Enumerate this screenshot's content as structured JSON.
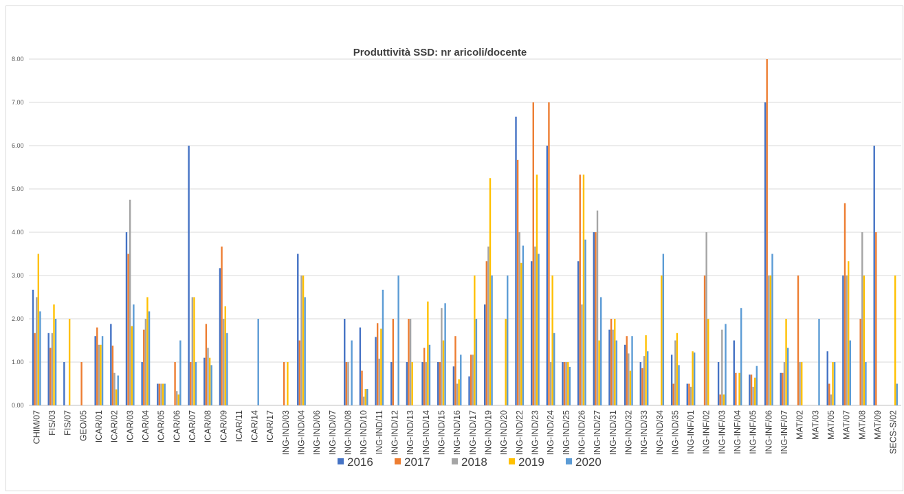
{
  "chart_data": {
    "type": "bar",
    "title": "Produttività SSD: nr aricoli/docente",
    "xlabel": "",
    "ylabel": "",
    "ylim": [
      0,
      8
    ],
    "yticks": [
      "0.00",
      "1.00",
      "2.00",
      "3.00",
      "4.00",
      "5.00",
      "6.00",
      "7.00",
      "8.00"
    ],
    "grid": true,
    "legend_position": "bottom",
    "categories": [
      "CHIM/07",
      "FIS/03",
      "FIS/07",
      "GEO/05",
      "ICAR/01",
      "ICAR/02",
      "ICAR/03",
      "ICAR/04",
      "ICAR/05",
      "ICAR/06",
      "ICAR/07",
      "ICAR/08",
      "ICAR/09",
      "ICAR/11",
      "ICAR/14",
      "ICAR/17",
      "ING-IND/03",
      "ING-IND/04",
      "ING-IND/06",
      "ING-IND/07",
      "ING-IND/08",
      "ING-IND/10",
      "ING-IND/11",
      "ING-IND/12",
      "ING-IND/13",
      "ING-IND/14",
      "ING-IND/15",
      "ING-IND/16",
      "ING-IND/17",
      "ING-IND/19",
      "ING-IND/20",
      "ING-IND/22",
      "ING-IND/23",
      "ING-IND/24",
      "ING-IND/25",
      "ING-IND/26",
      "ING-IND/27",
      "ING-IND/31",
      "ING-IND/32",
      "ING-IND/33",
      "ING-IND/34",
      "ING-IND/35",
      "ING-INF/01",
      "ING-INF/02",
      "ING-INF/03",
      "ING-INF/04",
      "ING-INF/05",
      "ING-INF/06",
      "ING-INF/07",
      "MAT/02",
      "MAT/03",
      "MAT/05",
      "MAT/07",
      "MAT/08",
      "MAT/09",
      "SECS-S/02"
    ],
    "series": [
      {
        "name": "2016",
        "color": "#4472c4",
        "values": [
          2.67,
          1.67,
          1.0,
          0,
          1.6,
          1.88,
          4.0,
          1.0,
          0.5,
          0,
          6.0,
          1.1,
          3.17,
          0,
          0,
          0,
          0,
          3.5,
          0,
          0,
          2.0,
          1.8,
          1.58,
          1.0,
          1.0,
          1.0,
          1.0,
          0.9,
          0.67,
          2.33,
          0,
          6.67,
          3.33,
          6.0,
          1.0,
          3.33,
          4.0,
          1.75,
          1.4,
          1.0,
          0,
          1.17,
          0.5,
          0,
          1.0,
          1.5,
          0.71,
          7.0,
          0.75,
          0,
          0,
          1.25,
          3.0,
          0,
          6.0,
          0
        ]
      },
      {
        "name": "2017",
        "color": "#ed7d31",
        "values": [
          1.67,
          1.33,
          0,
          1.0,
          1.8,
          1.38,
          3.5,
          1.75,
          0.5,
          1.0,
          1.0,
          1.88,
          3.67,
          0,
          0,
          0,
          1.0,
          1.5,
          0,
          0,
          1.0,
          0.8,
          1.9,
          2.0,
          2.0,
          1.33,
          1.0,
          1.6,
          1.17,
          3.33,
          0,
          5.67,
          7.0,
          7.0,
          1.0,
          5.33,
          4.0,
          2.0,
          1.6,
          0.86,
          0,
          0.5,
          0.5,
          3.0,
          0.25,
          0.75,
          0.71,
          8.0,
          0.75,
          3.0,
          0,
          0.5,
          4.67,
          2.0,
          4.0,
          0
        ]
      },
      {
        "name": "2018",
        "color": "#a5a5a5",
        "values": [
          2.5,
          1.67,
          0,
          0,
          1.4,
          0.75,
          4.75,
          2.0,
          0.5,
          0.33,
          2.5,
          1.33,
          2.0,
          0,
          0,
          0,
          0,
          3.0,
          0,
          0,
          1.0,
          0.2,
          1.08,
          0,
          2.0,
          1.0,
          2.25,
          0.5,
          1.17,
          3.67,
          0,
          4.0,
          3.67,
          1.0,
          1.0,
          2.33,
          4.5,
          1.75,
          1.2,
          1.14,
          0,
          1.5,
          0.43,
          4.0,
          1.75,
          0,
          0.43,
          3.0,
          1.0,
          1.0,
          0,
          0.25,
          3.0,
          4.0,
          0,
          0
        ]
      },
      {
        "name": "2019",
        "color": "#ffc000",
        "values": [
          3.5,
          2.33,
          2.0,
          0,
          1.4,
          0.37,
          1.83,
          2.5,
          0.5,
          0.25,
          2.5,
          1.1,
          2.29,
          0,
          0,
          0,
          1.0,
          3.0,
          0,
          0,
          0,
          0.38,
          1.77,
          0,
          1.0,
          2.4,
          1.5,
          0.6,
          3.0,
          5.25,
          2.0,
          3.29,
          5.33,
          3.0,
          1.0,
          5.33,
          1.5,
          2.0,
          0.8,
          1.62,
          3.0,
          1.67,
          1.25,
          2.0,
          0.25,
          0.75,
          0.64,
          3.0,
          2.0,
          1.0,
          0,
          1.0,
          3.33,
          3.0,
          0,
          3.0
        ]
      },
      {
        "name": "2020",
        "color": "#5b9bd5",
        "values": [
          2.17,
          2.0,
          0,
          0,
          1.6,
          0.69,
          2.33,
          2.17,
          0.5,
          1.5,
          1.0,
          0.93,
          1.67,
          0,
          2.0,
          0,
          0,
          2.5,
          0,
          0,
          1.5,
          0.38,
          2.67,
          3.0,
          0,
          1.4,
          2.36,
          1.17,
          2.0,
          3.0,
          3.0,
          3.69,
          3.5,
          1.67,
          0.89,
          3.83,
          2.5,
          1.5,
          1.6,
          1.25,
          3.5,
          0.93,
          1.22,
          0,
          1.88,
          2.25,
          0.91,
          3.5,
          1.33,
          0,
          2.0,
          1.0,
          1.5,
          1.0,
          0,
          0.5
        ]
      }
    ]
  }
}
